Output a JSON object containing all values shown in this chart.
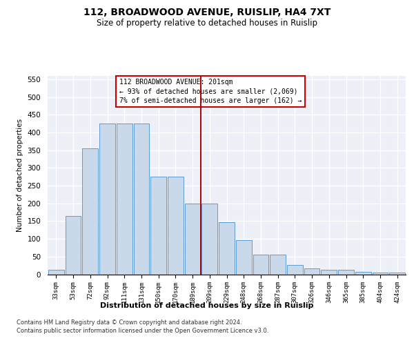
{
  "title1": "112, BROADWOOD AVENUE, RUISLIP, HA4 7XT",
  "title2": "Size of property relative to detached houses in Ruislip",
  "xlabel": "Distribution of detached houses by size in Ruislip",
  "ylabel": "Number of detached properties",
  "categories": [
    "33sqm",
    "53sqm",
    "72sqm",
    "92sqm",
    "111sqm",
    "131sqm",
    "150sqm",
    "170sqm",
    "189sqm",
    "209sqm",
    "229sqm",
    "248sqm",
    "268sqm",
    "287sqm",
    "307sqm",
    "326sqm",
    "346sqm",
    "365sqm",
    "385sqm",
    "404sqm",
    "424sqm"
  ],
  "bar_heights": [
    12,
    165,
    355,
    425,
    425,
    425,
    275,
    275,
    200,
    200,
    148,
    97,
    55,
    55,
    27,
    17,
    12,
    12,
    6,
    5,
    5
  ],
  "bar_color": "#c9d9ea",
  "bar_edge_color": "#5b9bd5",
  "vline_color": "#aa0000",
  "vline_position": 8.5,
  "annotation_lines": [
    "112 BROADWOOD AVENUE: 201sqm",
    "← 93% of detached houses are smaller (2,069)",
    "7% of semi-detached houses are larger (162) →"
  ],
  "ylim_max": 560,
  "yticks": [
    0,
    50,
    100,
    150,
    200,
    250,
    300,
    350,
    400,
    450,
    500,
    550
  ],
  "footer1": "Contains HM Land Registry data © Crown copyright and database right 2024.",
  "footer2": "Contains public sector information licensed under the Open Government Licence v3.0.",
  "bg_color": "#edf1f7"
}
